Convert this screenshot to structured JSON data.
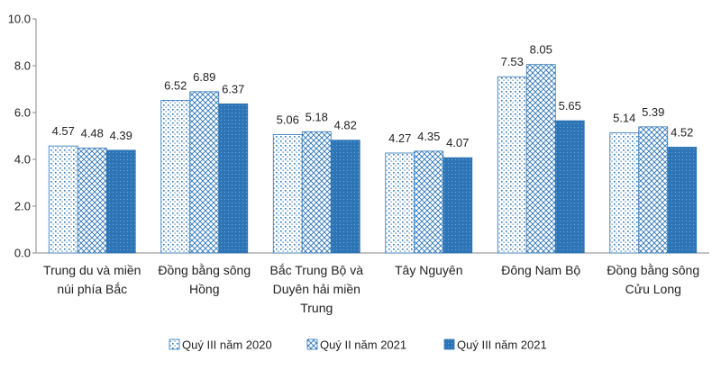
{
  "chart_data": {
    "type": "bar",
    "title": "",
    "xlabel": "",
    "ylabel": "",
    "ylim": [
      0,
      10
    ],
    "yticks": [
      "0.0",
      "2.0",
      "4.0",
      "6.0",
      "8.0",
      "10.0"
    ],
    "grid": false,
    "legend_position": "bottom",
    "categories": [
      [
        "Trung du và miền",
        "núi phía Bắc"
      ],
      [
        "Đồng bằng sông",
        "Hồng"
      ],
      [
        "Bắc Trung Bộ và",
        "Duyên hải miền",
        "Trung"
      ],
      [
        "Tây Nguyên"
      ],
      [
        "Đông Nam Bộ"
      ],
      [
        "Đồng bằng sông",
        "Cửu Long"
      ]
    ],
    "series": [
      {
        "name": "Quý III năm 2020",
        "values": [
          4.57,
          6.52,
          5.06,
          4.27,
          7.53,
          5.14
        ],
        "labels": [
          "4.57",
          "6.52",
          "5.06",
          "4.27",
          "7.53",
          "5.14"
        ],
        "color": "#2E75B6",
        "pattern": "dots"
      },
      {
        "name": "Quý II năm 2021",
        "values": [
          4.48,
          6.89,
          5.18,
          4.35,
          8.05,
          5.39
        ],
        "labels": [
          "4.48",
          "6.89",
          "5.18",
          "4.35",
          "8.05",
          "5.39"
        ],
        "color": "#2E75B6",
        "pattern": "zigzag"
      },
      {
        "name": "Quý III năm 2021",
        "values": [
          4.39,
          6.37,
          4.82,
          4.07,
          5.65,
          4.52
        ],
        "labels": [
          "4.39",
          "6.37",
          "4.82",
          "4.07",
          "5.65",
          "4.52"
        ],
        "color": "#2E75B6",
        "pattern": "dense"
      }
    ]
  }
}
